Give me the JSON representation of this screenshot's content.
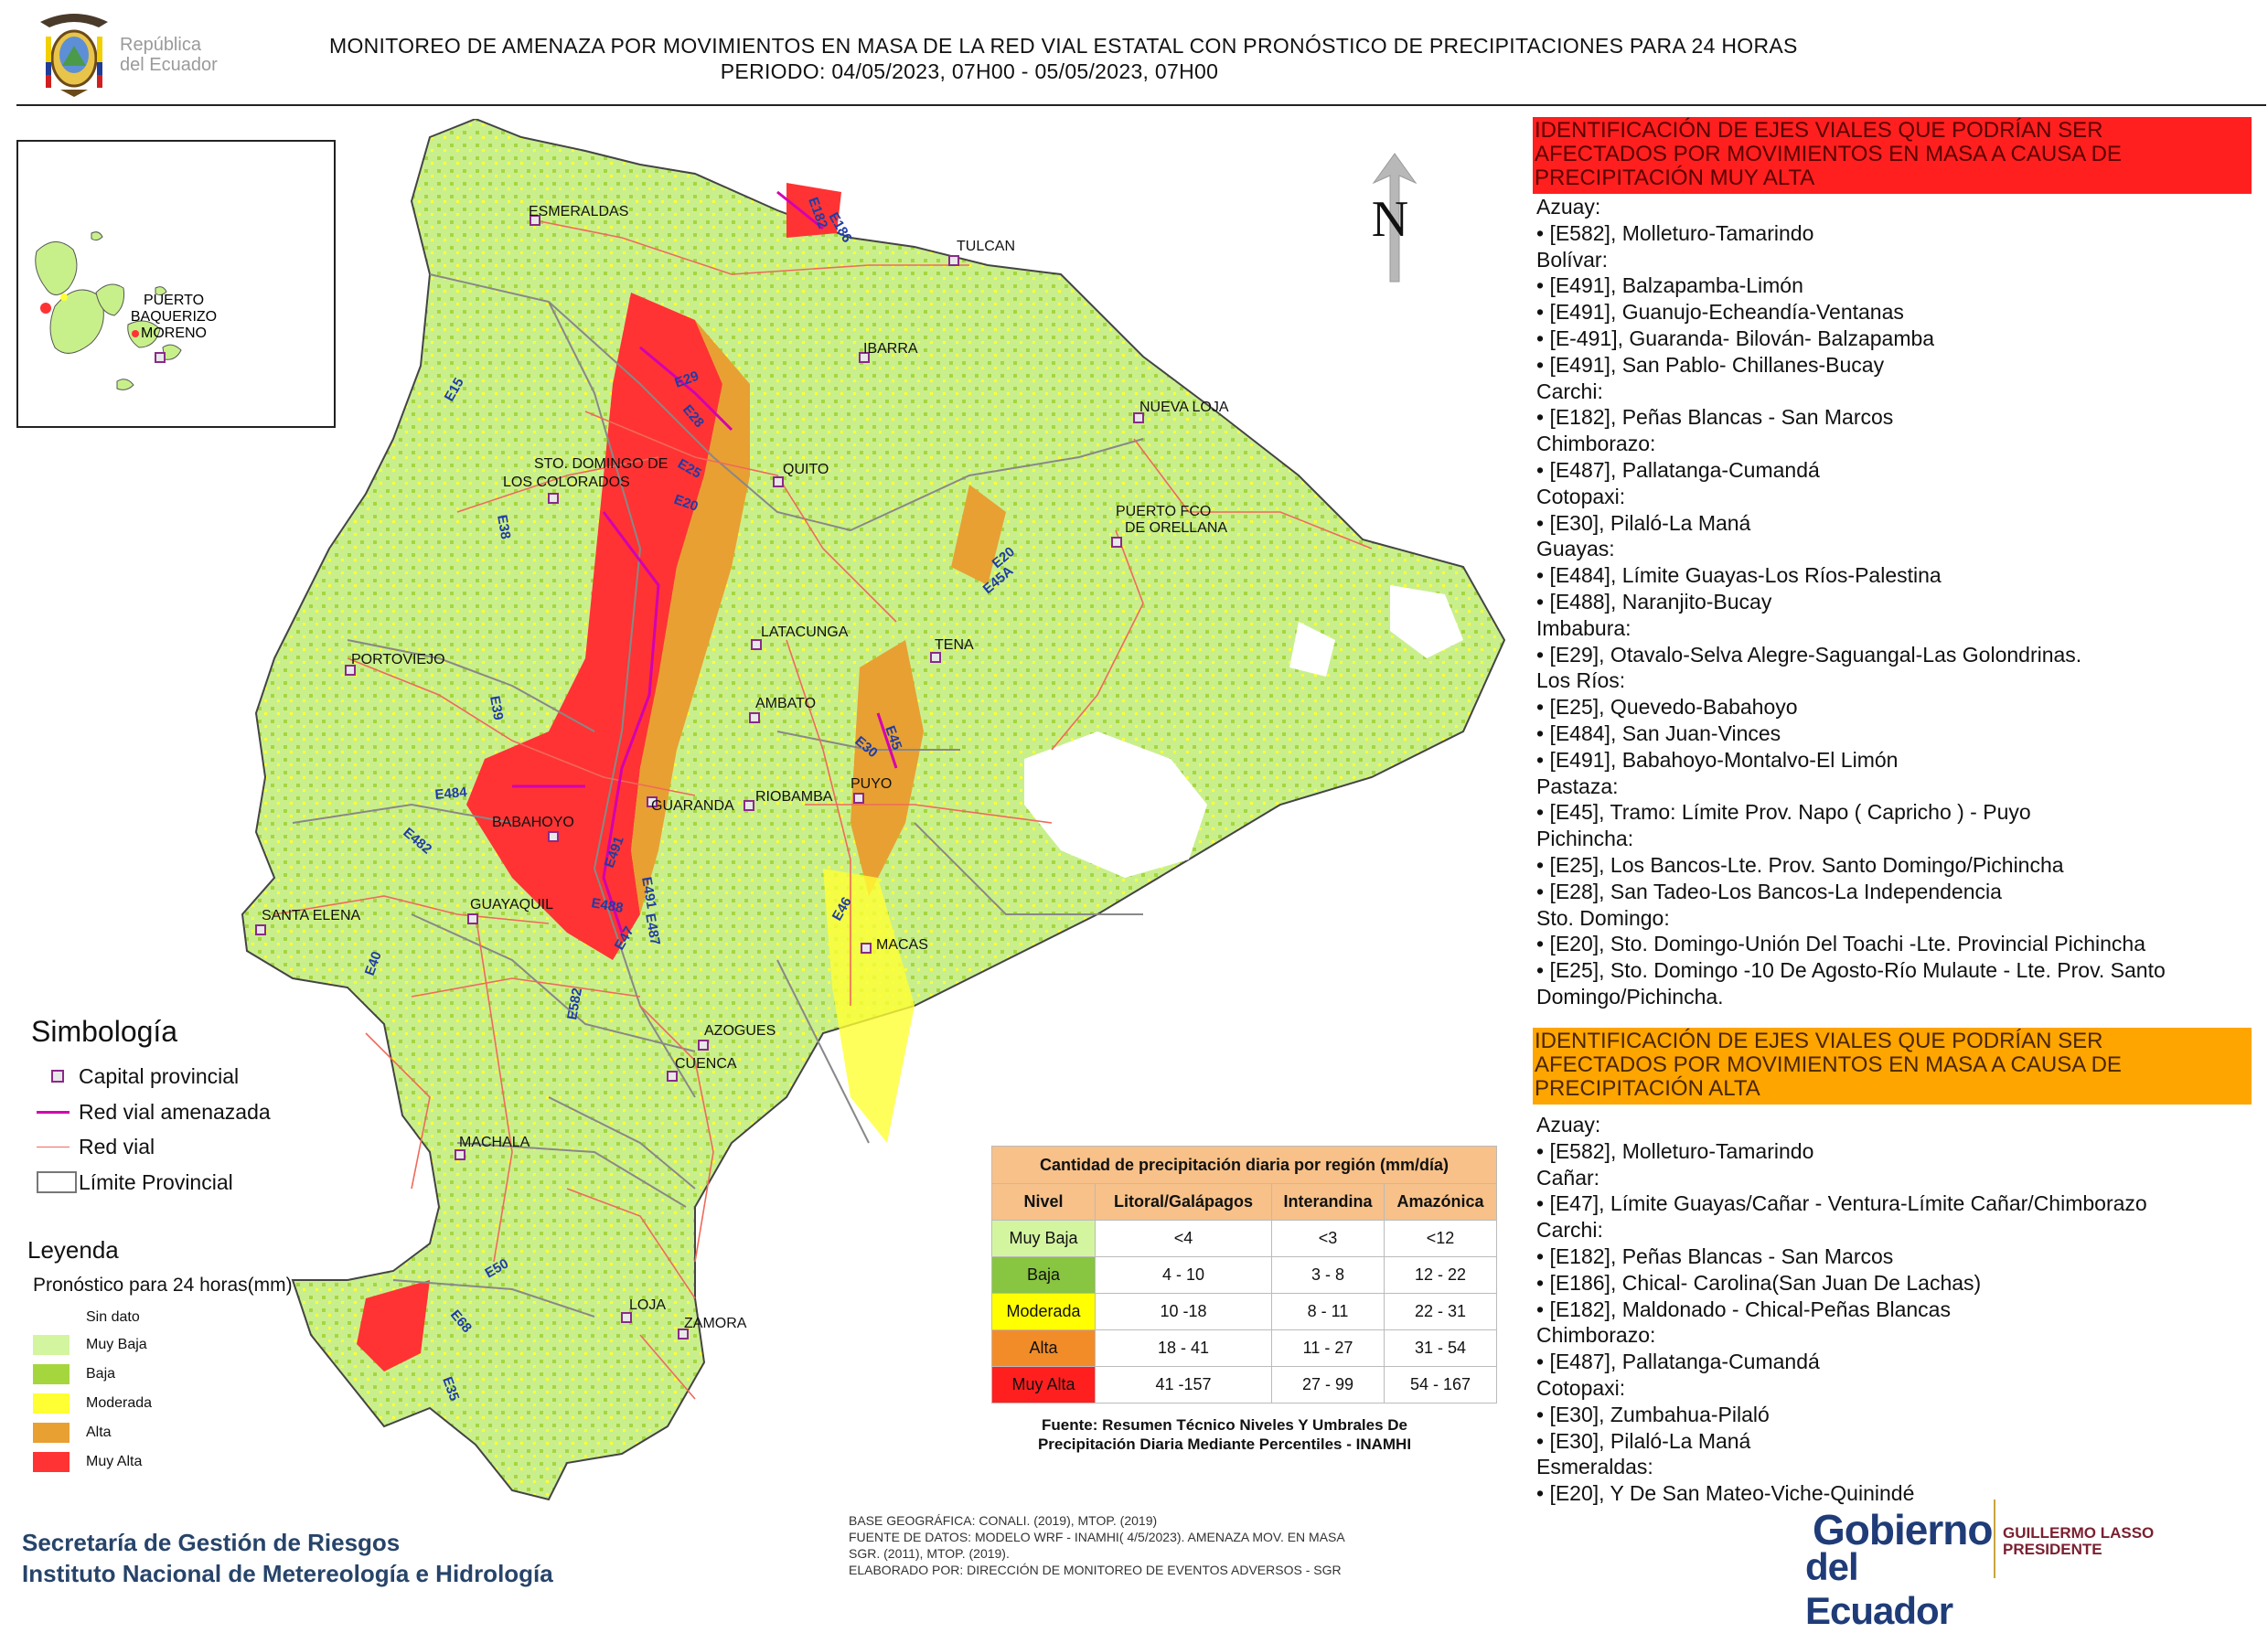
{
  "header": {
    "logo_text_line1": "República",
    "logo_text_line2": "del Ecuador",
    "title_line1": "MONITOREO DE AMENAZA POR MOVIMIENTOS EN MASA DE LA RED VIAL  ESTATAL  CON PRONÓSTICO  DE  PRECIPITACIONES PARA 24 HORAS",
    "title_line2": "PERIODO: 04/05/2023, 07H00 - 05/05/2023, 07H00"
  },
  "inset": {
    "label_line1": "PUERTO",
    "label_line2": "BAQUERIZO",
    "label_line3": "MORENO"
  },
  "north_label": "N",
  "map": {
    "cities": {
      "esmeraldas": "ESMERALDAS",
      "tulcan": "TULCAN",
      "ibarra": "IBARRA",
      "nueva_loja": "NUEVA LOJA",
      "sto_domingo_1": "STO. DOMINGO DE",
      "sto_domingo_2": "LOS COLORADOS",
      "quito": "QUITO",
      "puerto_orellana_1": "PUERTO FCO",
      "puerto_orellana_2": "DE ORELLANA",
      "portoviejo": "PORTOVIEJO",
      "latacunga": "LATACUNGA",
      "tena": "TENA",
      "ambato": "AMBATO",
      "puyo": "PUYO",
      "guaranda": "GUARANDA",
      "riobamba": "RIOBAMBA",
      "babahoyo": "BABAHOYO",
      "santa_elena": "SANTA ELENA",
      "guayaquil": "GUAYAQUIL",
      "macas": "MACAS",
      "azogues": "AZOGUES",
      "cuenca": "CUENCA",
      "machala": "MACHALA",
      "loja": "LOJA",
      "zamora": "ZAMORA"
    },
    "roads": {
      "e182": "E182",
      "e186": "E186",
      "e15": "E15",
      "e29": "E29",
      "e28": "E28",
      "e25": "E25",
      "e20a": "E20",
      "e38": "E38",
      "e20b": "E20",
      "e45a": "E45A",
      "e39": "E39",
      "e484": "E484",
      "e30": "E30",
      "e45": "E45",
      "e482": "E482",
      "e491a": "E491",
      "e491b": "E491",
      "e488": "E488",
      "e487": "E487",
      "e47": "E47",
      "e40": "E40",
      "e46": "E46",
      "e582": "E582",
      "e50": "E50",
      "e68": "E68",
      "e35": "E35"
    }
  },
  "symbology": {
    "title": "Simbología",
    "capital": "Capital provincial",
    "threatened_road": "Red vial amenazada",
    "road": "Red vial",
    "boundary": "Límite Provincial"
  },
  "legend": {
    "title": "Leyenda",
    "subtitle": "Pronóstico para 24 horas(mm)",
    "levels": [
      "Sin dato",
      "Muy Baja",
      "Baja",
      "Moderada",
      "Alta",
      "Muy Alta"
    ],
    "colors": {
      "sin_dato": "#ffffff",
      "muy_baja": "#d4f5a0",
      "baja": "#a6d63e",
      "moderada": "#ffff33",
      "alta": "#e8a032",
      "muy_alta": "#ff3333"
    }
  },
  "precip_table": {
    "title": "Cantidad de precipitación diaria por región (mm/día)",
    "headers": [
      "Nivel",
      "Litoral/Galápagos",
      "Interandina",
      "Amazónica"
    ],
    "rows": [
      {
        "level": "Muy Baja",
        "litoral": "<4",
        "interandina": "<3",
        "amazonica": "<12",
        "color": "#d4f5a0"
      },
      {
        "level": "Baja",
        "litoral": "4 - 10",
        "interandina": "3 - 8",
        "amazonica": "12 - 22",
        "color": "#88c540"
      },
      {
        "level": "Moderada",
        "litoral": "10 -18",
        "interandina": "8 - 11",
        "amazonica": "22 - 31",
        "color": "#ffff00"
      },
      {
        "level": "Alta",
        "litoral": "18 - 41",
        "interandina": "11 - 27",
        "amazonica": "31 - 54",
        "color": "#f28c28"
      },
      {
        "level": "Muy Alta",
        "litoral": "41 -157",
        "interandina": "27 - 99",
        "amazonica": "54 - 167",
        "color": "#ff1f1f"
      }
    ],
    "source_line1": "Fuente: Resumen Técnico Niveles Y Umbrales De",
    "source_line2": "Precipitación Diaria Mediante Percentiles - INAMHI"
  },
  "footer": {
    "org1": "Secretaría de Gestión de Riesgos",
    "org2": "Instituto Nacional de Metereología e Hidrología",
    "src1": "BASE GEOGRÁFICA: CONALI. (2019), MTOP. (2019)",
    "src2": "FUENTE DE DATOS: MODELO WRF - INAMHI( 4/5/2023).  AMENAZA MOV. EN MASA",
    "src3": "SGR. (2011), MTOP. (2019).",
    "src4": "ELABORADO POR: DIRECCIÓN DE MONITOREO DE EVENTOS ADVERSOS - SGR",
    "gob1": "Gobierno",
    "gob2": "del Ecuador",
    "pres1": "GUILLERMO LASSO",
    "pres2": "PRESIDENTE"
  },
  "panel_muy_alta": {
    "heading_line1": "IDENTIFICACIÓN DE EJES VIALES QUE PODRÍAN SER",
    "heading_line2": "AFECTADOS POR MOVIMIENTOS EN MASA A CAUSA DE",
    "heading_line3": "PRECIPITACIÓN MUY ALTA",
    "lines": [
      "Azuay:",
      "• [E582], Molleturo-Tamarindo",
      "Bolívar:",
      "• [E491], Balzapamba-Limón",
      "• [E491], Guanujo-Echeandía-Ventanas",
      "• [E-491], Guaranda- Bilován- Balzapamba",
      "• [E491], San Pablo- Chillanes-Bucay",
      "Carchi:",
      "• [E182], Peñas Blancas - San Marcos",
      "Chimborazo:",
      "• [E487], Pallatanga-Cumandá",
      "Cotopaxi:",
      "• [E30], Pilaló-La Maná",
      "Guayas:",
      "• [E484], Límite Guayas-Los Ríos-Palestina",
      "• [E488], Naranjito-Bucay",
      "Imbabura:",
      "• [E29], Otavalo-Selva Alegre-Saguangal-Las Golondrinas.",
      "Los Ríos:",
      "• [E25], Quevedo-Babahoyo",
      "• [E484], San Juan-Vinces",
      "• [E491], Babahoyo-Montalvo-El Limón",
      "Pastaza:",
      "• [E45], Tramo: Límite Prov. Napo ( Capricho ) - Puyo",
      "Pichincha:",
      "• [E25], Los Bancos-Lte. Prov. Santo Domingo/Pichincha",
      "• [E28], San Tadeo-Los Bancos-La Independencia",
      "Sto. Domingo:",
      "• [E20], Sto. Domingo-Unión Del Toachi -Lte. Provincial Pichincha",
      "• [E25], Sto. Domingo -10 De Agosto-Río Mulaute - Lte. Prov. Santo",
      "Domingo/Pichincha."
    ]
  },
  "panel_alta": {
    "heading_line1": "IDENTIFICACIÓN DE EJES VIALES QUE PODRÍAN SER",
    "heading_line2": "AFECTADOS POR MOVIMIENTOS EN MASA A CAUSA DE",
    "heading_line3": "PRECIPITACIÓN  ALTA",
    "lines": [
      "Azuay:",
      "• [E582], Molleturo-Tamarindo",
      "Cañar:",
      "• [E47], Límite Guayas/Cañar - Ventura-Límite Cañar/Chimborazo",
      "Carchi:",
      "• [E182], Peñas Blancas - San Marcos",
      "• [E186], Chical- Carolina(San Juan De Lachas)",
      "• [E182], Maldonado - Chical-Peñas Blancas",
      "Chimborazo:",
      "• [E487], Pallatanga-Cumandá",
      "Cotopaxi:",
      "• [E30], Zumbahua-Pilaló",
      "• [E30], Pilaló-La Maná",
      "Esmeraldas:",
      "• [E20], Y De San Mateo-Viche-Quinindé"
    ]
  }
}
